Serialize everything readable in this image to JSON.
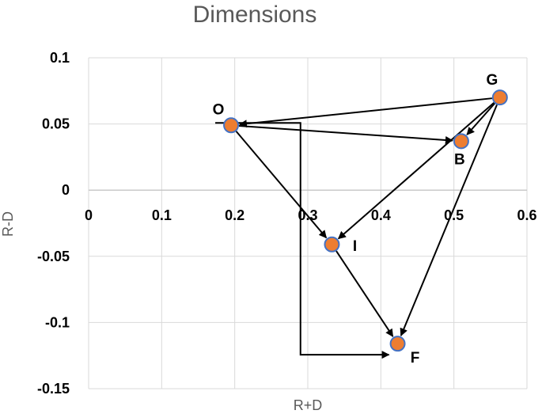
{
  "chart_data": {
    "type": "scatter",
    "title": "Dimensions",
    "xlabel": "R+D",
    "ylabel": "R-D",
    "xlim": [
      0,
      0.6
    ],
    "ylim": [
      -0.15,
      0.1
    ],
    "x_ticks": [
      0,
      0.1,
      0.2,
      0.3,
      0.4,
      0.5,
      0.6
    ],
    "x_tick_labels": [
      "0",
      "0.1",
      "0.2",
      "0.3",
      "0.4",
      "0.5",
      "0.6"
    ],
    "y_ticks": [
      0.1,
      0.05,
      0,
      -0.05,
      -0.1,
      -0.15
    ],
    "y_tick_labels": [
      "0.1",
      "0.05",
      "0",
      "-0.05",
      "-0.1",
      "-0.15"
    ],
    "grid": true,
    "points": [
      {
        "label": "O",
        "x": 0.195,
        "y": 0.049
      },
      {
        "label": "G",
        "x": 0.563,
        "y": 0.07
      },
      {
        "label": "B",
        "x": 0.51,
        "y": 0.037
      },
      {
        "label": "I",
        "x": 0.333,
        "y": -0.041
      },
      {
        "label": "F",
        "x": 0.423,
        "y": -0.116
      }
    ],
    "arrows": [
      {
        "from": "G",
        "to": "O"
      },
      {
        "from": "O",
        "to": "B"
      },
      {
        "from": "G",
        "to": "B"
      },
      {
        "from": "G",
        "to": "I"
      },
      {
        "from": "G",
        "to": "F"
      },
      {
        "from": "O",
        "to": "I"
      },
      {
        "from": "I",
        "to": "F"
      },
      {
        "from": "O",
        "to": "F",
        "route": "elbow",
        "via_x": 0.29
      }
    ],
    "colors": {
      "marker_fill": "#ED7D31",
      "marker_stroke": "#4472C4",
      "arrow": "#000000",
      "grid": "#D9D9D9"
    }
  }
}
